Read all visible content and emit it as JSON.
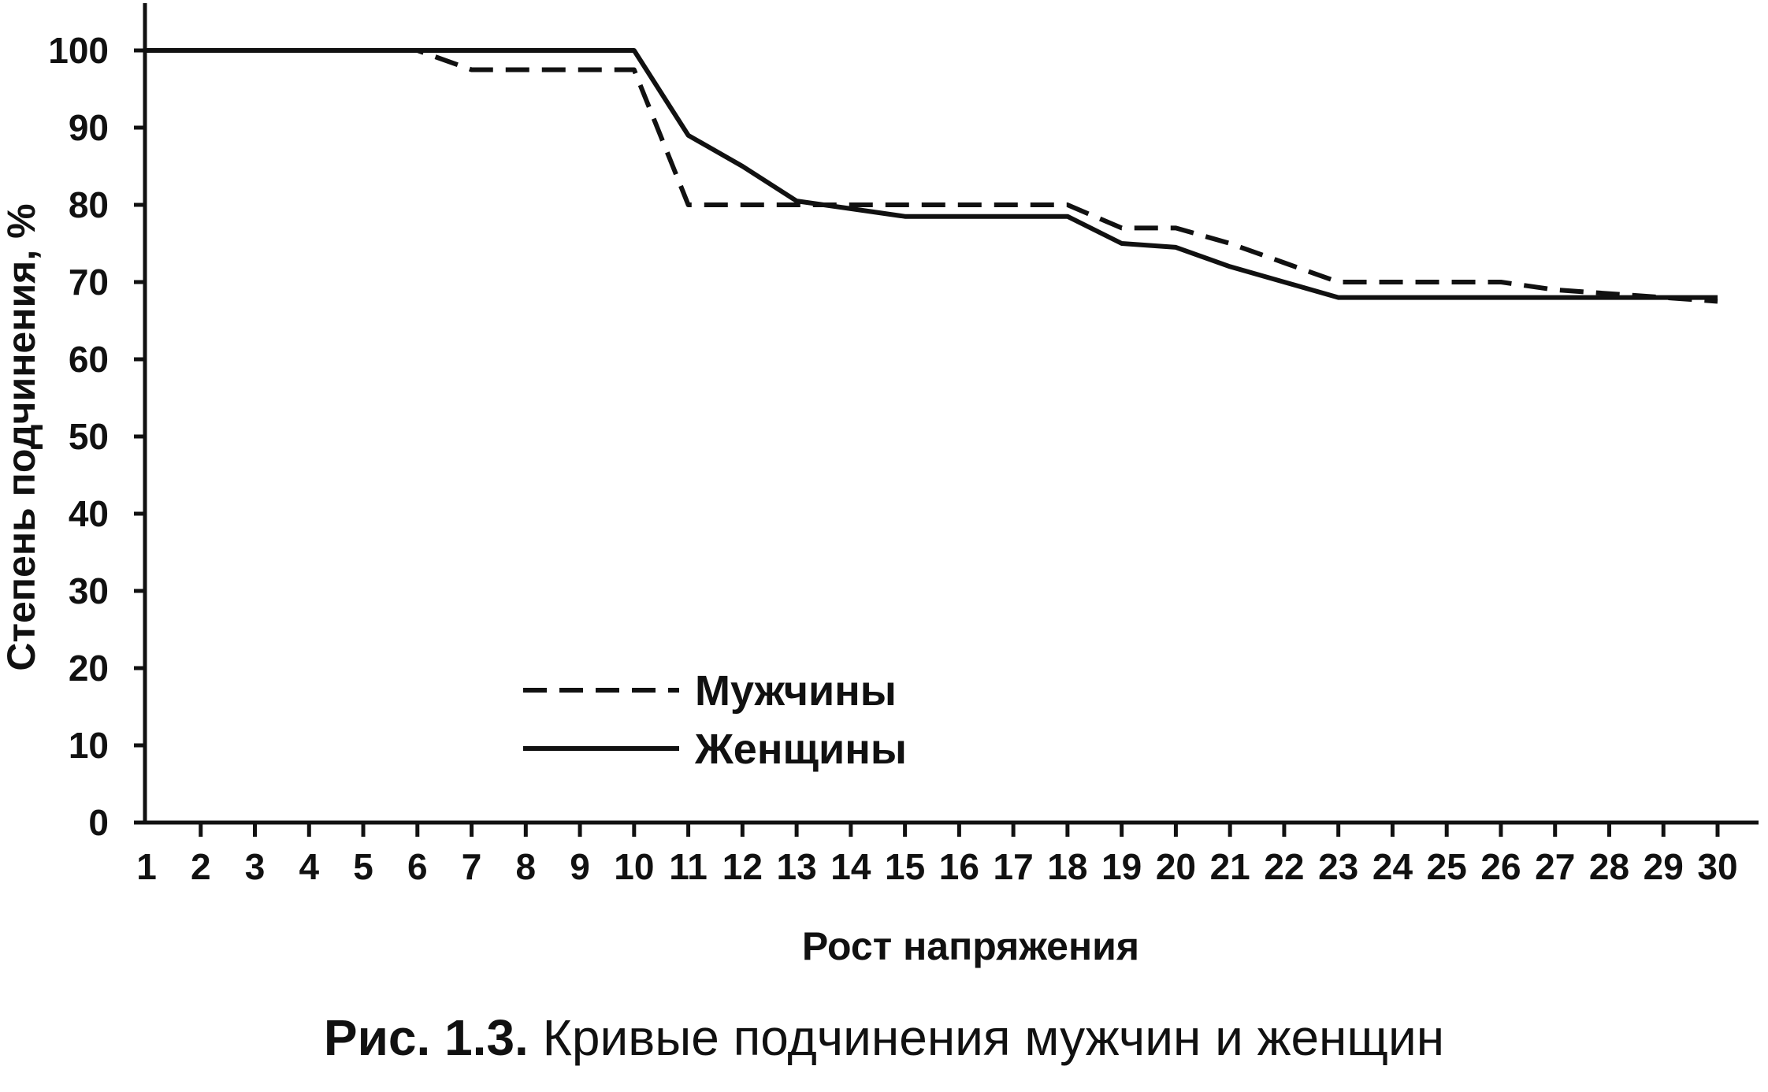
{
  "chart_data": {
    "type": "line",
    "xlabel": "Рост напряжения",
    "ylabel": "Степень подчинения, %",
    "x": [
      1,
      2,
      3,
      4,
      5,
      6,
      7,
      8,
      9,
      10,
      11,
      12,
      13,
      14,
      15,
      16,
      17,
      18,
      19,
      20,
      21,
      22,
      23,
      24,
      25,
      26,
      27,
      28,
      29,
      30
    ],
    "x_tick_labels": [
      "1",
      "2",
      "3",
      "4",
      "5",
      "6",
      "7",
      "8",
      "9",
      "10",
      "11",
      "12",
      "13",
      "14",
      "15",
      "16",
      "17",
      "18",
      "19",
      "20",
      "21",
      "22",
      "23",
      "24",
      "25",
      "26",
      "27",
      "28",
      "29",
      "30"
    ],
    "y_ticks": [
      0,
      10,
      20,
      30,
      40,
      50,
      60,
      70,
      80,
      90,
      100
    ],
    "y_tick_labels": [
      "0",
      "10",
      "20",
      "30",
      "40",
      "50",
      "60",
      "70",
      "80",
      "90",
      "100"
    ],
    "xlim": [
      1,
      30
    ],
    "ylim": [
      0,
      100
    ],
    "grid": false,
    "legend_position": "lower-left",
    "series": [
      {
        "name": "Мужчины",
        "line_style": "dashed",
        "color": "#111111",
        "values": [
          100,
          100,
          100,
          100,
          100,
          100,
          97.5,
          97.5,
          97.5,
          97.5,
          80,
          80,
          80,
          80,
          80,
          80,
          80,
          80,
          77,
          77,
          75,
          72.5,
          70,
          70,
          70,
          70,
          69,
          68.5,
          68,
          67.5
        ]
      },
      {
        "name": "Женщины",
        "line_style": "solid",
        "color": "#111111",
        "values": [
          100,
          100,
          100,
          100,
          100,
          100,
          100,
          100,
          100,
          100,
          89,
          85,
          80.5,
          79.5,
          78.5,
          78.5,
          78.5,
          78.5,
          75,
          74.5,
          72,
          70,
          68,
          68,
          68,
          68,
          68,
          68,
          68,
          68
        ]
      }
    ]
  },
  "caption": {
    "figure_number": "Рис. 1.3.",
    "text": "Кривые подчинения мужчин и женщин"
  }
}
